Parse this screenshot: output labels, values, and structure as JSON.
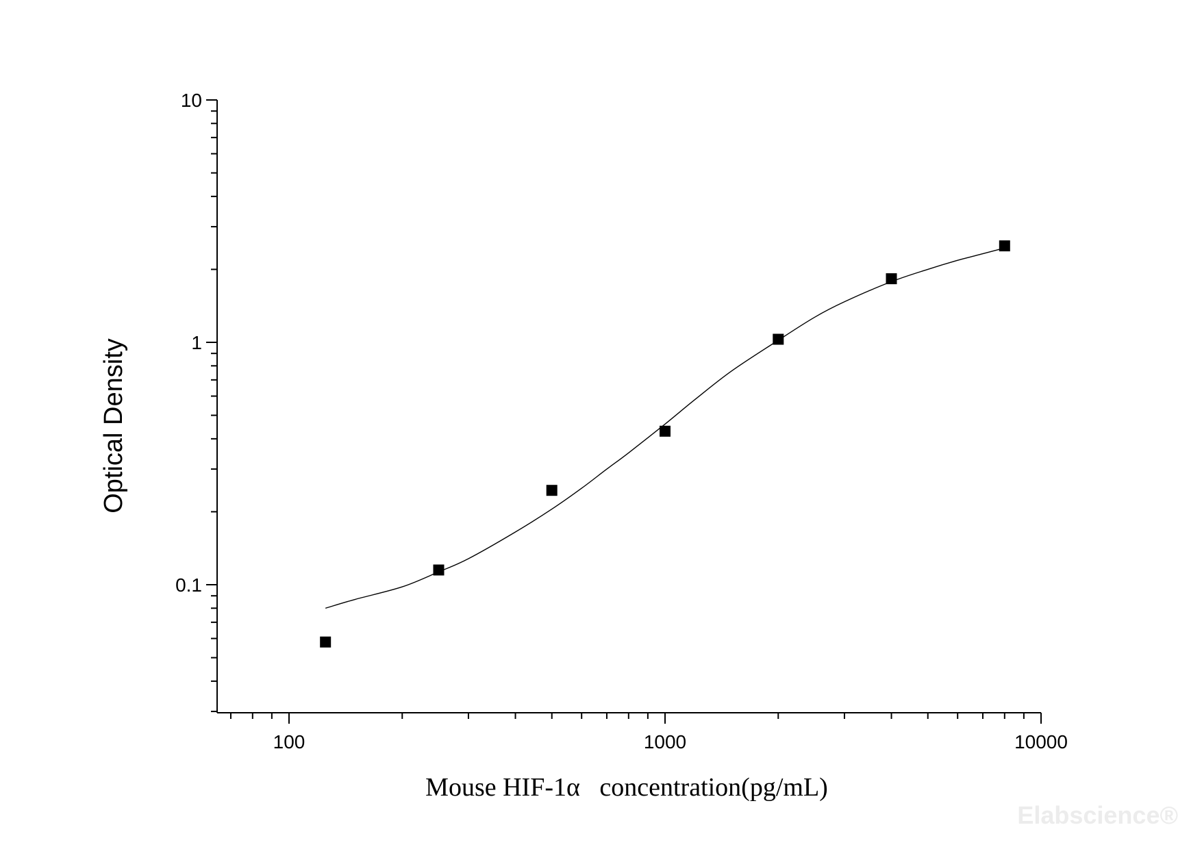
{
  "chart_data": {
    "type": "scatter",
    "title": "",
    "xlabel": "Mouse HIF-1α   concentration(pg/mL)",
    "ylabel": "Optical Density",
    "xscale": "log",
    "yscale": "log",
    "xlim": [
      65,
      10000
    ],
    "ylim": [
      0.03,
      10
    ],
    "x_ticks": [
      100,
      1000,
      10000
    ],
    "x_tick_labels": [
      "100",
      "1000",
      "10000"
    ],
    "y_ticks": [
      0.1,
      1,
      10
    ],
    "y_tick_labels": [
      "0.1",
      "1",
      "10"
    ],
    "grid": false,
    "legend": "none",
    "series": [
      {
        "kind": "points",
        "marker": "square",
        "color": "#000000",
        "x": [
          125,
          250,
          500,
          1000,
          2000,
          4000,
          8000
        ],
        "y": [
          0.058,
          0.115,
          0.245,
          0.43,
          1.03,
          1.83,
          2.5
        ]
      },
      {
        "kind": "fitted-curve",
        "color": "#000000",
        "x": [
          125,
          150,
          200,
          250,
          300,
          400,
          500,
          600,
          700,
          800,
          1000,
          1200,
          1500,
          2000,
          2500,
          3000,
          4000,
          5000,
          6000,
          7000,
          8000
        ],
        "y": [
          0.08,
          0.087,
          0.098,
          0.113,
          0.128,
          0.165,
          0.205,
          0.25,
          0.3,
          0.35,
          0.46,
          0.58,
          0.76,
          1.02,
          1.27,
          1.47,
          1.78,
          2.0,
          2.18,
          2.32,
          2.45
        ]
      }
    ]
  },
  "watermark": "Elabscience®"
}
